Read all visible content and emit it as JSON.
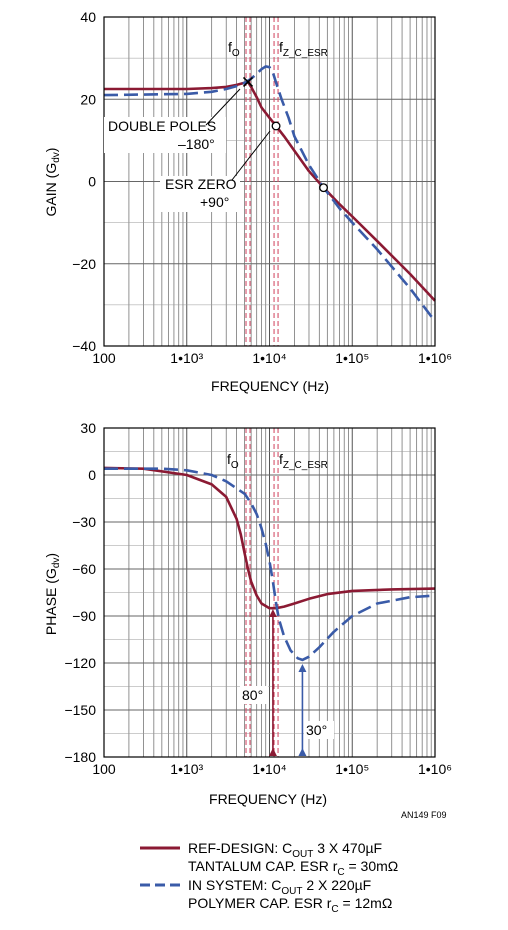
{
  "chart_data": [
    {
      "type": "line",
      "xscale": "log",
      "xlim": [
        100,
        1000000
      ],
      "ylim": [
        -40,
        40
      ],
      "yticks": [
        -40,
        -20,
        0,
        20,
        40
      ],
      "xticks": [
        "100",
        "1•10³",
        "1•10⁴",
        "1•10⁵",
        "1•10⁶"
      ],
      "xlabel": "FREQUENCY (Hz)",
      "ylabel": "GAIN (G",
      "ylabel_sub": "dv",
      "ylabel_end": ")",
      "grid": true,
      "vlines_x": [
        5500,
        12000
      ],
      "markers": {
        "f0": "f",
        "f0_sub": "O",
        "fz": "f",
        "fz_sub": "Z_C_ESR"
      },
      "annotations": {
        "double_poles": "DOUBLE POLES",
        "double_poles_deg": "–180°",
        "esr_zero": "ESR ZERO",
        "esr_zero_deg": "+90°"
      },
      "series": [
        {
          "name": "REF-DESIGN",
          "style": "solid",
          "color": "#8b1a33",
          "x": [
            100,
            1000,
            2000,
            3000,
            4000,
            5000,
            5500,
            6000,
            7000,
            8000,
            10000,
            12000,
            15000,
            20000,
            30000,
            45000,
            70000,
            100000,
            200000,
            500000,
            1000000
          ],
          "y": [
            22.5,
            22.5,
            22.7,
            23.0,
            23.5,
            24.0,
            24.2,
            23.0,
            20.5,
            18.0,
            15.5,
            13.5,
            11.0,
            7.5,
            2.5,
            -1.5,
            -5.5,
            -8.5,
            -14.5,
            -22.5,
            -29.0
          ]
        },
        {
          "name": "IN SYSTEM",
          "style": "dashed",
          "color": "#3a5ba8",
          "x": [
            100,
            1000,
            2000,
            3000,
            4000,
            5000,
            6000,
            7000,
            8000,
            9000,
            10000,
            11000,
            12000,
            14000,
            17000,
            20000,
            30000,
            45000,
            70000,
            100000,
            200000,
            500000,
            1000000
          ],
          "y": [
            21.0,
            21.3,
            21.8,
            22.5,
            23.2,
            24.0,
            25.0,
            26.2,
            27.3,
            28.0,
            27.8,
            26.5,
            24.0,
            20.0,
            15.5,
            11.0,
            4.0,
            -1.5,
            -6.5,
            -10.0,
            -16.5,
            -26.0,
            -34.0
          ]
        }
      ],
      "points": [
        {
          "label": "double-poles-point",
          "shape": "x",
          "x": 5500,
          "y": 24.2
        },
        {
          "label": "esr-zero-point",
          "shape": "circle",
          "x": 12000,
          "y": 13.5
        },
        {
          "label": "crossing-point",
          "shape": "circle",
          "x": 45000,
          "y": -1.5
        }
      ]
    },
    {
      "type": "line",
      "xscale": "log",
      "xlim": [
        100,
        1000000
      ],
      "ylim": [
        -180,
        30
      ],
      "yticks": [
        -180,
        -150,
        -120,
        -90,
        -60,
        -30,
        0,
        30
      ],
      "xticks": [
        "100",
        "1•10³",
        "1•10⁴",
        "1•10⁵",
        "1•10⁶"
      ],
      "xlabel": "FREQUENCY (Hz)",
      "ylabel": "PHASE (G",
      "ylabel_sub": "dv",
      "ylabel_end": ")",
      "grid": true,
      "vlines_x": [
        5500,
        12000
      ],
      "markers": {
        "f0": "f",
        "f0_sub": "O",
        "fz": "f",
        "fz_sub": "Z_C_ESR"
      },
      "annotations": {
        "margin_ref": "80°",
        "margin_sys": "30°"
      },
      "margin_arrows": [
        {
          "x": 11000,
          "y_from": -180,
          "y_to": -85
        },
        {
          "x": 25000,
          "y_from": -180,
          "y_to": -120
        }
      ],
      "series": [
        {
          "name": "REF-DESIGN",
          "style": "solid",
          "color": "#8b1a33",
          "x": [
            100,
            300,
            1000,
            2000,
            3000,
            4000,
            4500,
            5000,
            5500,
            6000,
            7000,
            8000,
            10000,
            12000,
            15000,
            20000,
            30000,
            50000,
            100000,
            300000,
            1000000
          ],
          "y": [
            4.5,
            4,
            0,
            -6,
            -14,
            -28,
            -38,
            -50,
            -60,
            -68,
            -77,
            -82,
            -85,
            -85,
            -84,
            -82,
            -79,
            -76,
            -74,
            -73,
            -72.5
          ]
        },
        {
          "name": "IN SYSTEM",
          "style": "dashed",
          "color": "#3a5ba8",
          "x": [
            100,
            500,
            1000,
            2000,
            3000,
            5000,
            6000,
            7000,
            8000,
            9000,
            10000,
            11000,
            12000,
            13000,
            15000,
            18000,
            22000,
            25000,
            30000,
            40000,
            60000,
            100000,
            200000,
            500000,
            1000000
          ],
          "y": [
            4,
            4,
            3,
            0,
            -4,
            -12,
            -18,
            -25,
            -34,
            -44,
            -55,
            -68,
            -82,
            -92,
            -103,
            -112,
            -117,
            -118,
            -116,
            -110,
            -100,
            -90,
            -82,
            -78,
            -77
          ]
        }
      ]
    }
  ],
  "footnote": "AN149 F09",
  "legend": [
    {
      "style": "solid",
      "color": "#8b1a33",
      "line1_pre": "REF-DESIGN: C",
      "line1_sub": "OUT",
      "line1_post": " 3 X 470µF",
      "line2_pre": "TANTALUM CAP. ESR r",
      "line2_sub": "C",
      "line2_post": " = 30mΩ"
    },
    {
      "style": "dashed",
      "color": "#3a5ba8",
      "line1_pre": "IN SYSTEM: C",
      "line1_sub": "OUT",
      "line1_post": " 2 X 220µF",
      "line2_pre": "POLYMER CAP. ESR r",
      "line2_sub": "C",
      "line2_post": " = 12mΩ"
    }
  ]
}
